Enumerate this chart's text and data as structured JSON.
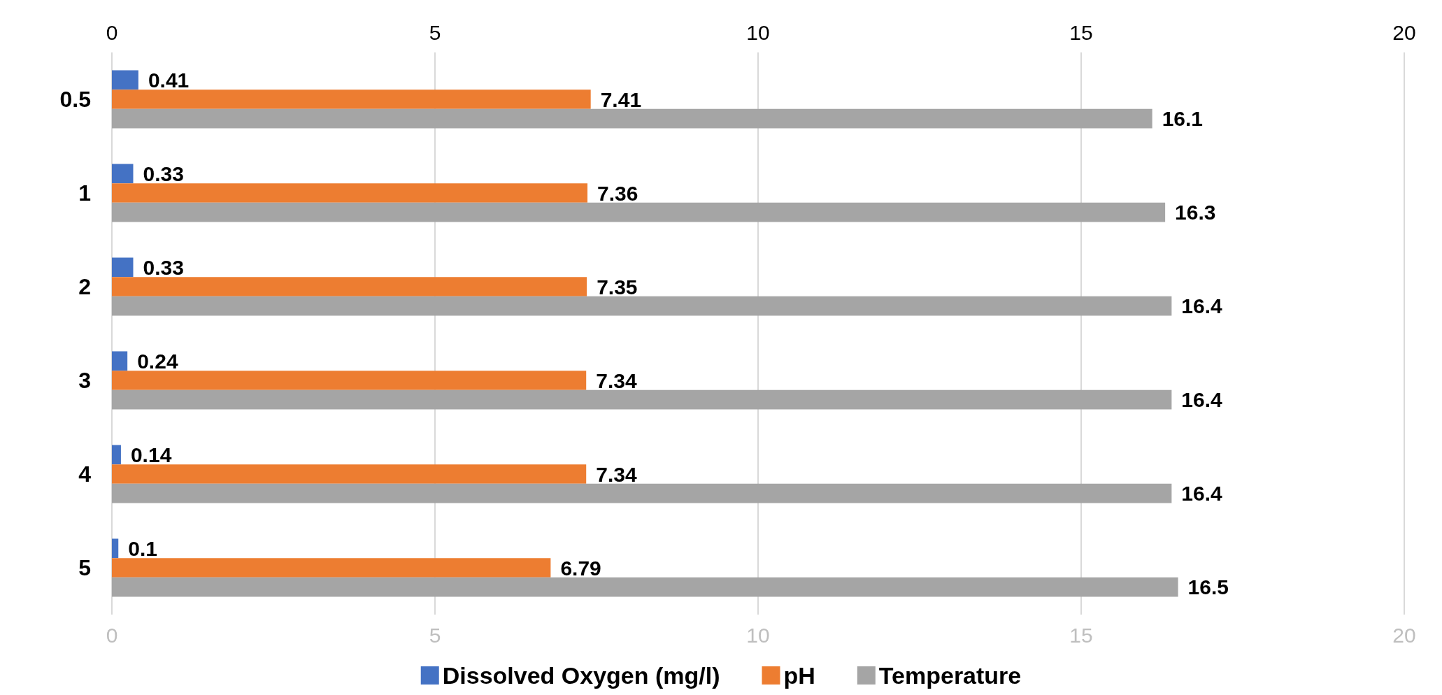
{
  "chart_data": {
    "type": "bar",
    "orientation": "horizontal",
    "categories": [
      "0.5",
      "1",
      "2",
      "3",
      "4",
      "5"
    ],
    "series": [
      {
        "name": "Dissolved Oxygen (mg/l)",
        "color": "#4472c4",
        "values": [
          0.41,
          0.33,
          0.33,
          0.24,
          0.14,
          0.1
        ]
      },
      {
        "name": "pH",
        "color": "#ed7d31",
        "values": [
          7.41,
          7.36,
          7.35,
          7.34,
          7.34,
          6.79
        ]
      },
      {
        "name": "Temperature",
        "color": "#a5a5a5",
        "values": [
          16.1,
          16.3,
          16.4,
          16.4,
          16.4,
          16.5
        ]
      }
    ],
    "xlim": [
      0,
      20
    ],
    "xticks": [
      0,
      5,
      10,
      15,
      20
    ],
    "x2lim": [
      0,
      20
    ],
    "x2ticks": [
      0,
      5,
      10,
      15,
      20
    ],
    "data_labels": true,
    "grid": "x",
    "legend": "bottom"
  }
}
